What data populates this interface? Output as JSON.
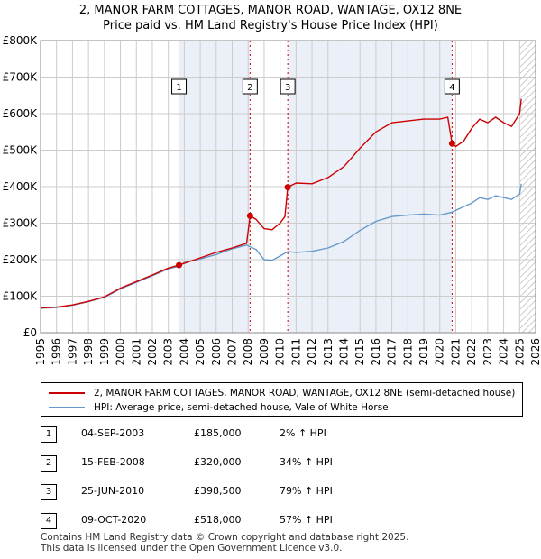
{
  "header": {
    "title_line1": "2, MANOR FARM COTTAGES, MANOR ROAD, WANTAGE, OX12 8NE",
    "title_line2": "Price paid vs. HM Land Registry's House Price Index (HPI)"
  },
  "colors": {
    "price_line": "#cc0000",
    "hpi_line": "#6699cc",
    "shade": "#dde6f3",
    "grid": "#cccccc",
    "marker_line": "#cc0000"
  },
  "chart_data": {
    "type": "line",
    "x_range": [
      1995,
      2026
    ],
    "ylim": [
      0,
      800000
    ],
    "y_ticks": [
      {
        "value": 0,
        "label": "£0"
      },
      {
        "value": 100000,
        "label": "£100K"
      },
      {
        "value": 200000,
        "label": "£200K"
      },
      {
        "value": 300000,
        "label": "£300K"
      },
      {
        "value": 400000,
        "label": "£400K"
      },
      {
        "value": 500000,
        "label": "£500K"
      },
      {
        "value": 600000,
        "label": "£600K"
      },
      {
        "value": 700000,
        "label": "£700K"
      },
      {
        "value": 800000,
        "label": "£800K"
      }
    ],
    "x_ticks": [
      "1995",
      "1996",
      "1997",
      "1998",
      "1999",
      "2000",
      "2001",
      "2002",
      "2003",
      "2004",
      "2005",
      "2006",
      "2007",
      "2008",
      "2009",
      "2010",
      "2011",
      "2012",
      "2013",
      "2014",
      "2015",
      "2016",
      "2017",
      "2018",
      "2019",
      "2020",
      "2021",
      "2022",
      "2023",
      "2024",
      "2025",
      "2026"
    ],
    "forecast_start": 2025.0,
    "shaded_periods": [
      [
        2003.67,
        2008.12
      ],
      [
        2010.48,
        2020.77
      ]
    ],
    "series": [
      {
        "name": "2, MANOR FARM COTTAGES, MANOR ROAD, WANTAGE, OX12 8NE (semi-detached house)",
        "color": "#cc0000",
        "points": [
          [
            1995.0,
            68000
          ],
          [
            1996.0,
            70000
          ],
          [
            1997.0,
            76000
          ],
          [
            1998.0,
            86000
          ],
          [
            1999.0,
            98000
          ],
          [
            2000.0,
            122000
          ],
          [
            2001.0,
            140000
          ],
          [
            2002.0,
            158000
          ],
          [
            2003.0,
            177000
          ],
          [
            2003.67,
            185000
          ],
          [
            2004.0,
            190000
          ],
          [
            2005.0,
            205000
          ],
          [
            2006.0,
            220000
          ],
          [
            2007.0,
            232000
          ],
          [
            2007.9,
            245000
          ],
          [
            2008.12,
            320000
          ],
          [
            2008.5,
            310000
          ],
          [
            2009.0,
            285000
          ],
          [
            2009.5,
            282000
          ],
          [
            2010.0,
            300000
          ],
          [
            2010.3,
            318000
          ],
          [
            2010.48,
            398500
          ],
          [
            2011.0,
            410000
          ],
          [
            2012.0,
            408000
          ],
          [
            2013.0,
            425000
          ],
          [
            2014.0,
            455000
          ],
          [
            2015.0,
            505000
          ],
          [
            2016.0,
            550000
          ],
          [
            2017.0,
            575000
          ],
          [
            2018.0,
            580000
          ],
          [
            2019.0,
            585000
          ],
          [
            2020.0,
            585000
          ],
          [
            2020.5,
            590000
          ],
          [
            2020.77,
            518000
          ],
          [
            2021.0,
            510000
          ],
          [
            2021.5,
            525000
          ],
          [
            2022.0,
            560000
          ],
          [
            2022.5,
            585000
          ],
          [
            2023.0,
            575000
          ],
          [
            2023.5,
            590000
          ],
          [
            2024.0,
            575000
          ],
          [
            2024.5,
            565000
          ],
          [
            2025.0,
            600000
          ],
          [
            2025.1,
            640000
          ]
        ]
      },
      {
        "name": "HPI: Average price, semi-detached house, Vale of White Horse",
        "color": "#6699cc",
        "points": [
          [
            1995.0,
            67000
          ],
          [
            1996.0,
            69000
          ],
          [
            1997.0,
            75000
          ],
          [
            1998.0,
            85000
          ],
          [
            1999.0,
            97000
          ],
          [
            2000.0,
            120000
          ],
          [
            2001.0,
            138000
          ],
          [
            2002.0,
            156000
          ],
          [
            2003.0,
            175000
          ],
          [
            2003.67,
            182000
          ],
          [
            2004.0,
            192000
          ],
          [
            2005.0,
            202000
          ],
          [
            2006.0,
            214000
          ],
          [
            2007.0,
            230000
          ],
          [
            2007.9,
            240000
          ],
          [
            2008.5,
            228000
          ],
          [
            2009.0,
            200000
          ],
          [
            2009.5,
            198000
          ],
          [
            2010.0,
            210000
          ],
          [
            2010.48,
            222000
          ],
          [
            2011.0,
            220000
          ],
          [
            2012.0,
            223000
          ],
          [
            2013.0,
            232000
          ],
          [
            2014.0,
            250000
          ],
          [
            2015.0,
            280000
          ],
          [
            2016.0,
            305000
          ],
          [
            2017.0,
            318000
          ],
          [
            2018.0,
            322000
          ],
          [
            2019.0,
            325000
          ],
          [
            2020.0,
            322000
          ],
          [
            2020.77,
            330000
          ],
          [
            2021.0,
            335000
          ],
          [
            2022.0,
            355000
          ],
          [
            2022.5,
            370000
          ],
          [
            2023.0,
            365000
          ],
          [
            2023.5,
            375000
          ],
          [
            2024.0,
            370000
          ],
          [
            2024.5,
            365000
          ],
          [
            2025.0,
            380000
          ],
          [
            2025.1,
            408000
          ]
        ]
      }
    ],
    "sales": [
      {
        "num": "1",
        "x": 2003.67,
        "price": 185000
      },
      {
        "num": "2",
        "x": 2008.12,
        "price": 320000
      },
      {
        "num": "3",
        "x": 2010.48,
        "price": 398500
      },
      {
        "num": "4",
        "x": 2020.77,
        "price": 518000
      }
    ]
  },
  "legend": {
    "price_label": "2, MANOR FARM COTTAGES, MANOR ROAD, WANTAGE, OX12 8NE (semi-detached house)",
    "hpi_label": "HPI: Average price, semi-detached house, Vale of White Horse"
  },
  "transactions": [
    {
      "num": "1",
      "date": "04-SEP-2003",
      "price": "£185,000",
      "hpi": "2% ↑ HPI"
    },
    {
      "num": "2",
      "date": "15-FEB-2008",
      "price": "£320,000",
      "hpi": "34% ↑ HPI"
    },
    {
      "num": "3",
      "date": "25-JUN-2010",
      "price": "£398,500",
      "hpi": "79% ↑ HPI"
    },
    {
      "num": "4",
      "date": "09-OCT-2020",
      "price": "£518,000",
      "hpi": "57% ↑ HPI"
    }
  ],
  "footer": {
    "line1": "Contains HM Land Registry data © Crown copyright and database right 2025.",
    "line2": "This data is licensed under the Open Government Licence v3.0."
  }
}
